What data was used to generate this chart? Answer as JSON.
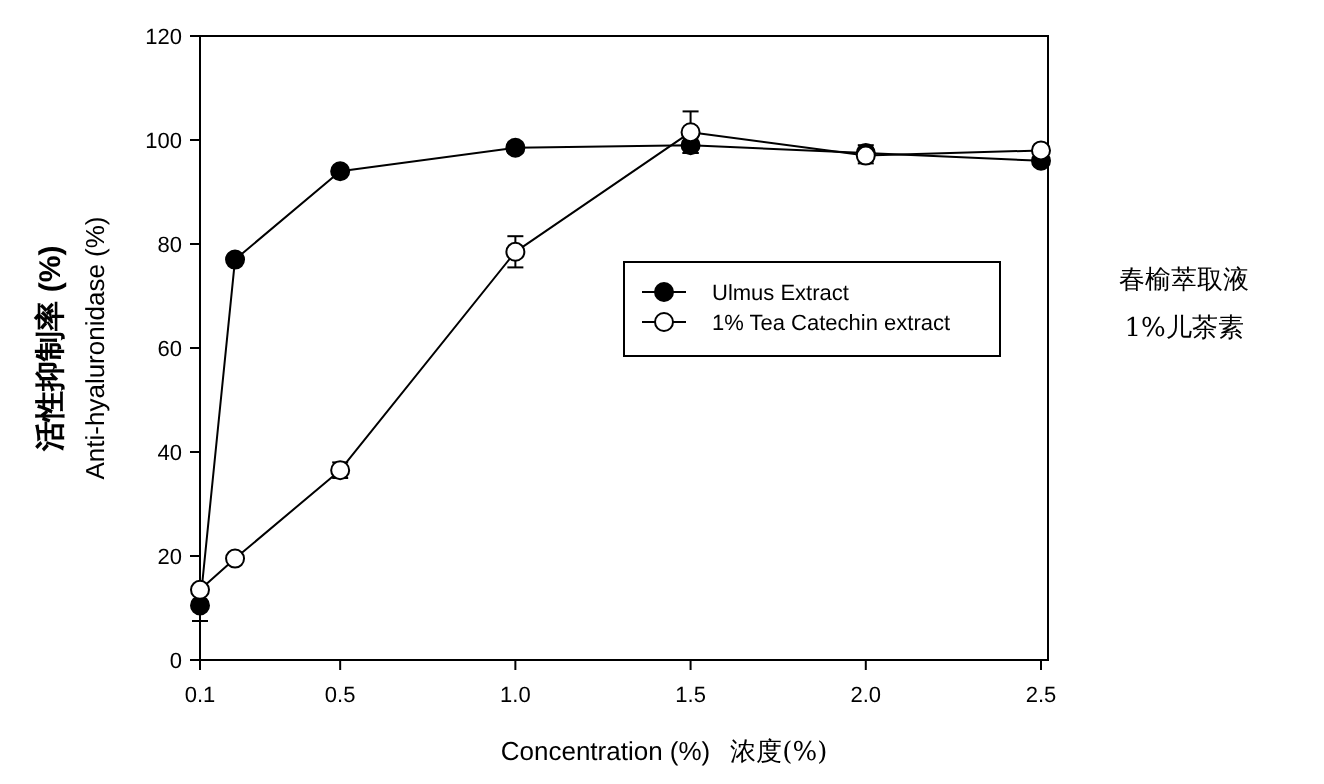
{
  "chart_data": {
    "type": "line",
    "xlabel": "Concentration (%)  浓度(%)",
    "ylabel": "活性抑制率 (%)\nAnti-hyaluronidase (%)",
    "x": [
      0.1,
      0.2,
      0.5,
      1.0,
      1.5,
      2.0,
      2.5
    ],
    "series": [
      {
        "name": "Ulmus Extract",
        "color": "#000000",
        "values": [
          10.5,
          77,
          94,
          98.5,
          99,
          97.5,
          96
        ],
        "errors": [
          3,
          null,
          null,
          1,
          1.5,
          1.5,
          1
        ],
        "marker": "circle"
      },
      {
        "name": "1% Tea Catechin extract",
        "color": "#000000",
        "values": [
          13.5,
          19.5,
          36.5,
          78.5,
          101.5,
          97,
          98
        ],
        "errors": [
          null,
          null,
          1.5,
          3,
          4,
          1.5,
          null
        ],
        "marker": "circle"
      }
    ],
    "xlim": [
      0.1,
      2.52
    ],
    "xticks": [
      0.1,
      0.5,
      {
        "value": 1,
        "label": "1.0"
      },
      1.5,
      {
        "value": 2,
        "label": "2.0"
      },
      2.5
    ],
    "ylim": [
      0,
      120
    ],
    "yticks": [
      0,
      20,
      40,
      60,
      80,
      100,
      120
    ],
    "legend": "right",
    "grid": false,
    "annotations": [
      "春榆萃取液",
      "1%儿茶素"
    ]
  }
}
